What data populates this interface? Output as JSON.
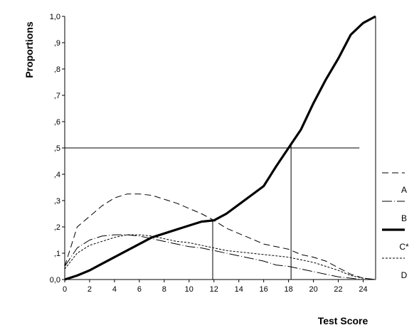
{
  "chart_data": {
    "type": "line",
    "title": "",
    "xlabel": "Test Score",
    "ylabel": "Proportions",
    "xlim": [
      0,
      25
    ],
    "ylim": [
      0,
      1
    ],
    "x_ticks": [
      0,
      2,
      4,
      6,
      8,
      10,
      12,
      14,
      16,
      18,
      20,
      22,
      24
    ],
    "x_tick_labels": [
      "0",
      "2",
      "4",
      "6",
      "8",
      "10",
      "12",
      "14",
      "16",
      "18",
      "20",
      "22",
      "24"
    ],
    "y_ticks": [
      0,
      0.1,
      0.2,
      0.3,
      0.4,
      0.5,
      0.6,
      0.7,
      0.8,
      0.9,
      1.0
    ],
    "y_tick_labels": [
      "0,0",
      ",1",
      ",2",
      ",3",
      ",4",
      ",5",
      ",6",
      ",7",
      ",8",
      ",9",
      "1,0"
    ],
    "grid": false,
    "legend_position": "right",
    "reference_lines": {
      "horizontal_y": 0.5,
      "horizontal_x_range": [
        0,
        23.7
      ],
      "vertical_x": [
        11.9,
        18.2,
        25
      ]
    },
    "series": [
      {
        "name": "A",
        "style": "long-dash",
        "color": "#000000",
        "x": [
          0,
          1,
          2,
          3,
          4,
          5,
          6,
          7,
          8,
          9,
          10,
          11,
          12,
          13,
          14,
          15,
          16,
          17,
          18,
          19,
          20,
          21,
          22,
          23,
          24,
          25
        ],
        "y": [
          0.05,
          0.2,
          0.24,
          0.28,
          0.31,
          0.325,
          0.325,
          0.32,
          0.305,
          0.29,
          0.27,
          0.25,
          0.225,
          0.195,
          0.175,
          0.155,
          0.135,
          0.125,
          0.115,
          0.095,
          0.085,
          0.07,
          0.045,
          0.02,
          0.005,
          0.0
        ]
      },
      {
        "name": "B",
        "style": "dash-dot",
        "color": "#000000",
        "x": [
          0,
          1,
          2,
          3,
          4,
          5,
          6,
          7,
          8,
          9,
          10,
          11,
          12,
          13,
          14,
          15,
          16,
          17,
          18,
          19,
          20,
          21,
          22,
          23,
          24,
          25
        ],
        "y": [
          0.05,
          0.12,
          0.15,
          0.165,
          0.17,
          0.17,
          0.165,
          0.155,
          0.145,
          0.135,
          0.125,
          0.12,
          0.11,
          0.1,
          0.09,
          0.08,
          0.07,
          0.055,
          0.05,
          0.04,
          0.03,
          0.02,
          0.01,
          0.005,
          0.0,
          0.0
        ]
      },
      {
        "name": "C*",
        "style": "solid-thick",
        "color": "#000000",
        "x": [
          0,
          1,
          2,
          3,
          4,
          5,
          6,
          7,
          8,
          9,
          10,
          11,
          12,
          13,
          14,
          15,
          16,
          17,
          18,
          19,
          20,
          21,
          22,
          23,
          24,
          25
        ],
        "y": [
          0.0,
          0.015,
          0.035,
          0.06,
          0.085,
          0.11,
          0.135,
          0.16,
          0.175,
          0.19,
          0.205,
          0.22,
          0.225,
          0.25,
          0.285,
          0.32,
          0.355,
          0.43,
          0.5,
          0.57,
          0.67,
          0.76,
          0.84,
          0.93,
          0.975,
          1.0
        ]
      },
      {
        "name": "D",
        "style": "short-dash",
        "color": "#000000",
        "x": [
          0,
          1,
          2,
          3,
          4,
          5,
          6,
          7,
          8,
          9,
          10,
          11,
          12,
          13,
          14,
          15,
          16,
          17,
          18,
          19,
          20,
          21,
          22,
          23,
          24,
          25
        ],
        "y": [
          0.04,
          0.1,
          0.13,
          0.145,
          0.16,
          0.17,
          0.17,
          0.165,
          0.155,
          0.145,
          0.14,
          0.13,
          0.12,
          0.11,
          0.105,
          0.1,
          0.095,
          0.09,
          0.085,
          0.075,
          0.065,
          0.05,
          0.035,
          0.015,
          0.005,
          0.0
        ]
      }
    ]
  }
}
